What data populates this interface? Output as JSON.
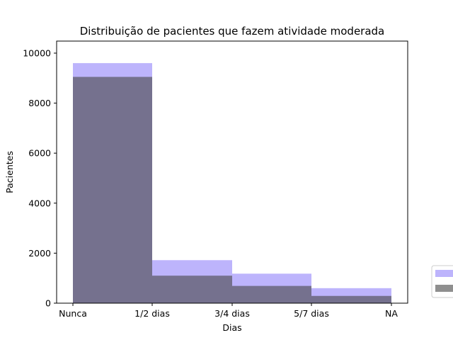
{
  "chart_data": {
    "type": "bar",
    "title": "Distribuição de pacientes que fazem atividade moderada",
    "xlabel": "Dias",
    "ylabel": "Pacientes",
    "ylim": [
      0,
      10000
    ],
    "yticks": [
      0,
      2000,
      4000,
      6000,
      8000,
      10000
    ],
    "xticks": [
      "Nunca",
      "1/2 dias",
      "3/4 dias",
      "5/7 dias",
      "NA"
    ],
    "bins": [
      {
        "from": "Nunca",
        "to": "1/2 dias"
      },
      {
        "from": "1/2 dias",
        "to": "3/4 dias"
      },
      {
        "from": "3/4 dias",
        "to": "5/7 dias"
      },
      {
        "from": "5/7 dias",
        "to": "NA"
      }
    ],
    "series": [
      {
        "values": [
          9600,
          1720,
          1180,
          600
        ],
        "color": "#9a8cfb",
        "opacity": 0.65
      },
      {
        "values": [
          9050,
          1100,
          690,
          290
        ],
        "color": "#444444",
        "opacity": 0.6
      }
    ],
    "legend": {
      "placement": "right-outside-bottom"
    },
    "grid": false
  }
}
